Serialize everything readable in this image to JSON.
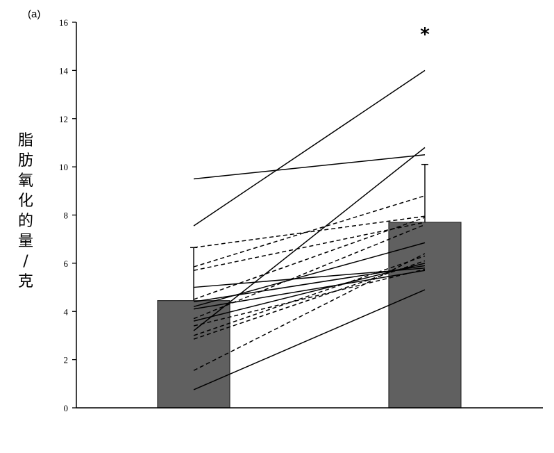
{
  "panel_label": "(a)",
  "chart_data": {
    "type": "bar",
    "ylabel": "脂肪氧化的量/克",
    "ylim": [
      0,
      16
    ],
    "yticks": [
      "0",
      "2",
      "4",
      "6",
      "8",
      "10",
      "12",
      "14",
      "16"
    ],
    "categories": [
      "",
      ""
    ],
    "values": [
      4.45,
      7.7
    ],
    "error_upper": [
      6.65,
      10.1
    ],
    "bar_color": "#606060",
    "significance_marker": "*",
    "individual_lines": [
      {
        "style": "solid",
        "values": [
          9.5,
          10.5
        ]
      },
      {
        "style": "solid",
        "values": [
          7.55,
          14.0
        ]
      },
      {
        "style": "solid",
        "values": [
          3.2,
          10.8
        ]
      },
      {
        "style": "solid",
        "values": [
          5.0,
          5.8
        ]
      },
      {
        "style": "solid",
        "values": [
          4.2,
          6.85
        ]
      },
      {
        "style": "solid",
        "values": [
          4.4,
          5.9
        ]
      },
      {
        "style": "solid",
        "values": [
          3.6,
          6.0
        ]
      },
      {
        "style": "solid",
        "values": [
          0.75,
          4.9
        ]
      },
      {
        "style": "solid",
        "values": [
          4.1,
          5.7
        ]
      },
      {
        "style": "dashed",
        "values": [
          6.65,
          7.95
        ]
      },
      {
        "style": "dashed",
        "values": [
          5.85,
          8.8
        ]
      },
      {
        "style": "dashed",
        "values": [
          5.7,
          7.7
        ]
      },
      {
        "style": "dashed",
        "values": [
          4.5,
          7.9
        ]
      },
      {
        "style": "dashed",
        "values": [
          3.7,
          7.6
        ]
      },
      {
        "style": "dashed",
        "values": [
          3.0,
          6.3
        ]
      },
      {
        "style": "dashed",
        "values": [
          2.85,
          6.1
        ]
      },
      {
        "style": "dashed",
        "values": [
          3.4,
          5.75
        ]
      },
      {
        "style": "dashed",
        "values": [
          1.55,
          6.4
        ]
      }
    ]
  }
}
